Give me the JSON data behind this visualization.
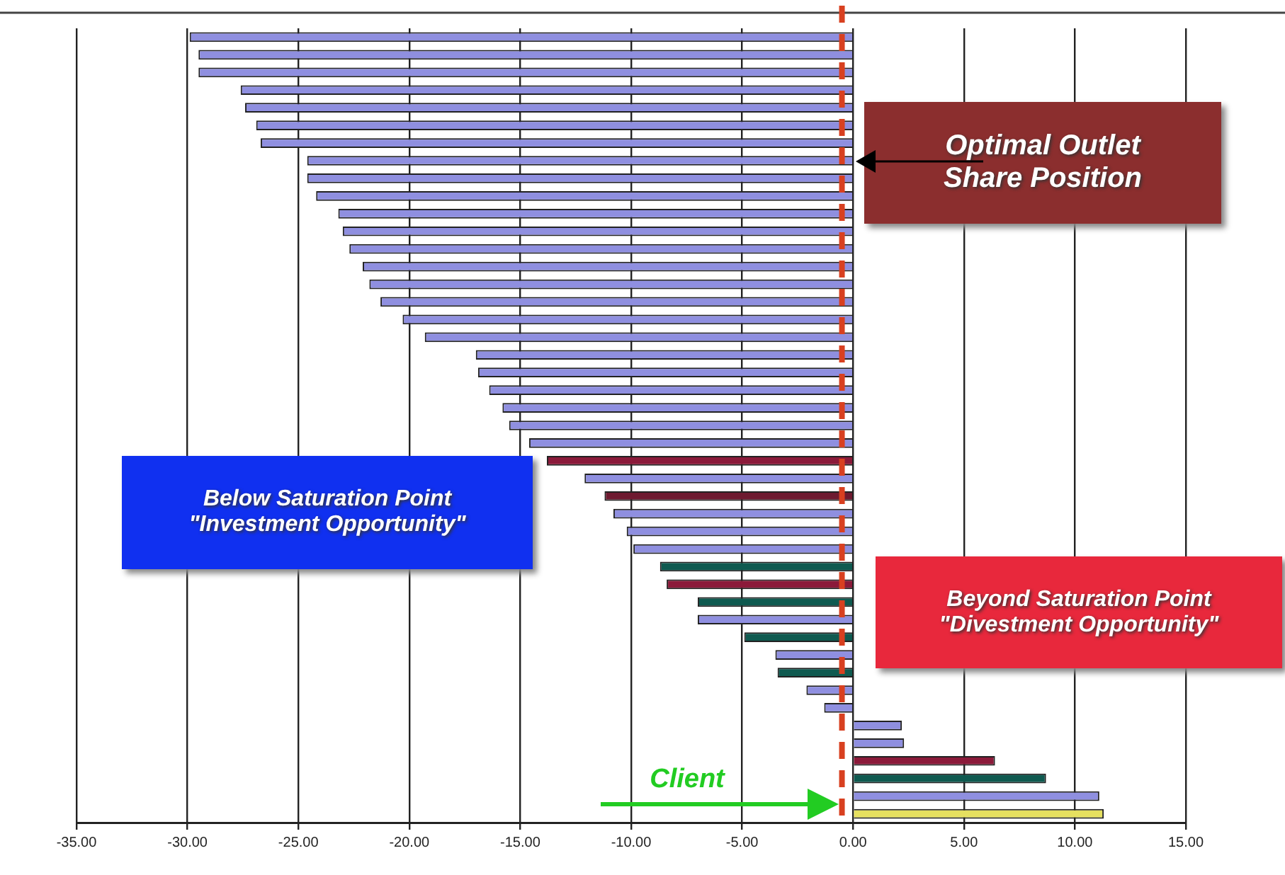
{
  "chart_data": {
    "type": "bar",
    "orientation": "horizontal",
    "categories": [
      null,
      null,
      null,
      null,
      null,
      null,
      null,
      null,
      null,
      null,
      null,
      null,
      null,
      null,
      null,
      null,
      null,
      null,
      null,
      null,
      null,
      null,
      null,
      null,
      null,
      null,
      null,
      null,
      null,
      null,
      null,
      null,
      null,
      null,
      null,
      null,
      null,
      null,
      null,
      null,
      null,
      null,
      null,
      null,
      null
    ],
    "values": [
      -29.9,
      -29.5,
      -29.5,
      -27.6,
      -27.4,
      -26.9,
      -26.7,
      -24.6,
      -24.6,
      -24.2,
      -23.2,
      -23.0,
      -22.7,
      -22.1,
      -21.8,
      -21.3,
      -20.3,
      -19.3,
      -17.0,
      -16.9,
      -16.4,
      -15.8,
      -15.5,
      -14.6,
      -13.8,
      -12.1,
      -11.2,
      -10.8,
      -10.2,
      -9.9,
      -8.7,
      -8.4,
      -7.0,
      -7.0,
      -4.9,
      -3.5,
      -3.4,
      -2.1,
      -1.3,
      2.2,
      2.3,
      6.4,
      8.7,
      11.1,
      11.3
    ],
    "colors": [
      "#8f8fe0",
      "#8f8fe0",
      "#8f8fe0",
      "#8f8fe0",
      "#8f8fe0",
      "#8f8fe0",
      "#8f8fe0",
      "#8f8fe0",
      "#8f8fe0",
      "#8f8fe0",
      "#8f8fe0",
      "#8f8fe0",
      "#8f8fe0",
      "#8f8fe0",
      "#8f8fe0",
      "#8f8fe0",
      "#8f8fe0",
      "#8f8fe0",
      "#8f8fe0",
      "#8f8fe0",
      "#8f8fe0",
      "#8f8fe0",
      "#8f8fe0",
      "#8f8fe0",
      "#8b1a3a",
      "#8f8fe0",
      "#6e1a30",
      "#8f8fe0",
      "#8f8fe0",
      "#8f8fe0",
      "#0f5a50",
      "#8b1a3a",
      "#0f5a50",
      "#8f8fe0",
      "#0f5a50",
      "#8f8fe0",
      "#0f5a50",
      "#8f8fe0",
      "#8f8fe0",
      "#8f8fe0",
      "#8f8fe0",
      "#8b1a3a",
      "#0f5a50",
      "#8f8fe0",
      "#e6e060"
    ],
    "xlim": [
      -35,
      15
    ],
    "xticks": [
      {
        "value": -35,
        "label": "-35.00"
      },
      {
        "value": -30,
        "label": "-30.00"
      },
      {
        "value": -25,
        "label": "-25.00"
      },
      {
        "value": -20,
        "label": "-20.00"
      },
      {
        "value": -15,
        "label": "-15.00"
      },
      {
        "value": -10,
        "label": "-10.00"
      },
      {
        "value": -5,
        "label": "-5.00"
      },
      {
        "value": 0,
        "label": "0.00"
      },
      {
        "value": 5,
        "label": "5.00"
      },
      {
        "value": 10,
        "label": "10.00"
      },
      {
        "value": 15,
        "label": "15.00"
      }
    ],
    "grid": "x",
    "legend": false,
    "ref_lines": [
      {
        "axis": "x",
        "value": -0.5,
        "color": "#d84020",
        "line_style": "dashed"
      }
    ],
    "annotations": [
      "Optimal Outlet Share Position",
      "Below Saturation Point \"Investment Opportunity\"",
      "Beyond Saturation Point \"Divestment Opportunity\"",
      "Client"
    ]
  }
}
